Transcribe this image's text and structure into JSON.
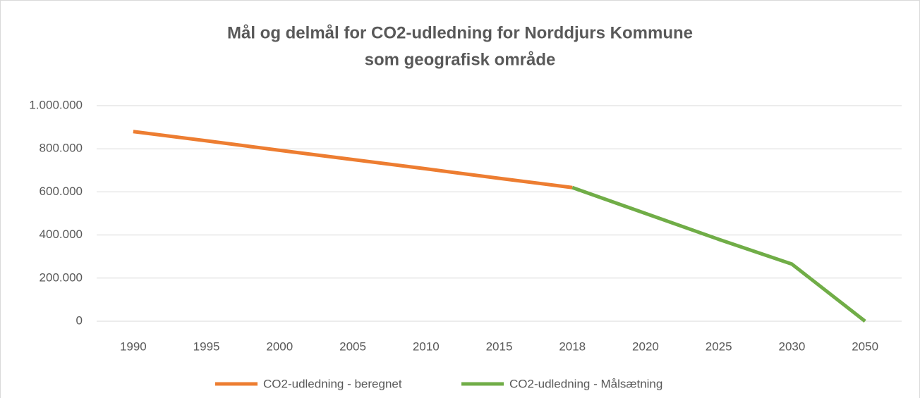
{
  "chart_data": {
    "type": "line",
    "title": [
      "Mål og delmål for CO2-udledning for Norddjurs Kommune",
      "som geografisk område"
    ],
    "categories": [
      "1990",
      "1995",
      "2000",
      "2005",
      "2010",
      "2015",
      "2018",
      "2020",
      "2025",
      "2030",
      "2050"
    ],
    "series": [
      {
        "name": "CO2-udledning - beregnet",
        "color": "#ed7d31",
        "values": [
          880000,
          837000,
          793000,
          750000,
          707000,
          663000,
          620000,
          null,
          null,
          null,
          null
        ]
      },
      {
        "name": "CO2-udledning - Målsætning",
        "color": "#70ad47",
        "values": [
          null,
          null,
          null,
          null,
          null,
          null,
          620000,
          500000,
          380000,
          265000,
          0
        ]
      }
    ],
    "ylim": [
      0,
      1000000
    ],
    "yticks": [
      0,
      {
        "value": 200000,
        "label": "200.000"
      },
      {
        "value": 400000,
        "label": "400.000"
      },
      {
        "value": 600000,
        "label": "600.000"
      },
      {
        "value": 800000,
        "label": "800.000"
      },
      {
        "value": 1000000,
        "label": "1.000.000"
      }
    ],
    "grid": true,
    "legend": "bottom"
  }
}
